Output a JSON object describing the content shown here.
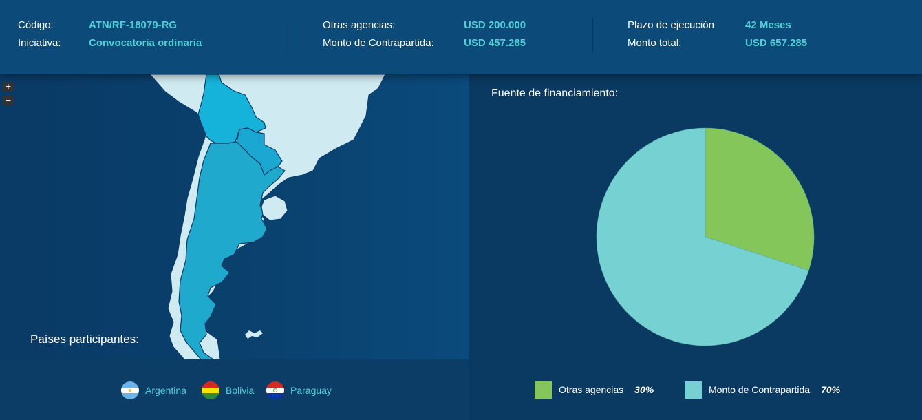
{
  "header": {
    "codigo_label": "Código:",
    "codigo_value": "ATN/RF-18079-RG",
    "iniciativa_label": "Iniciativa:",
    "iniciativa_value": "Convocatoria ordinaria",
    "otras_label": "Otras agencias:",
    "otras_value": "USD 200.000",
    "contrapartida_label": "Monto de Contrapartida:",
    "contrapartida_value": "USD 457.285",
    "plazo_label": "Plazo de ejecución",
    "plazo_value": "42 Meses",
    "total_label": "Monto total:",
    "total_value": "USD 657.285"
  },
  "map": {
    "zoom_in": "+",
    "zoom_out": "−",
    "participants_title": "Países participantes:",
    "countries": [
      {
        "name": "Argentina",
        "flag": "argentina-flag-icon"
      },
      {
        "name": "Bolivia",
        "flag": "bolivia-flag-icon"
      },
      {
        "name": "Paraguay",
        "flag": "paraguay-flag-icon"
      }
    ]
  },
  "funding": {
    "title": "Fuente de financiamiento:",
    "legend": [
      {
        "label": "Otras agencias",
        "pct": "30%",
        "color": "#84c65a"
      },
      {
        "label": "Monto de Contrapartida",
        "pct": "70%",
        "color": "#76d2d2"
      }
    ]
  },
  "chart_data": {
    "type": "pie",
    "categories": [
      "Otras agencias",
      "Monto de Contrapartida"
    ],
    "values": [
      30,
      70
    ],
    "colors": [
      "#84c65a",
      "#76d2d2"
    ],
    "title": "Fuente de financiamiento:"
  }
}
